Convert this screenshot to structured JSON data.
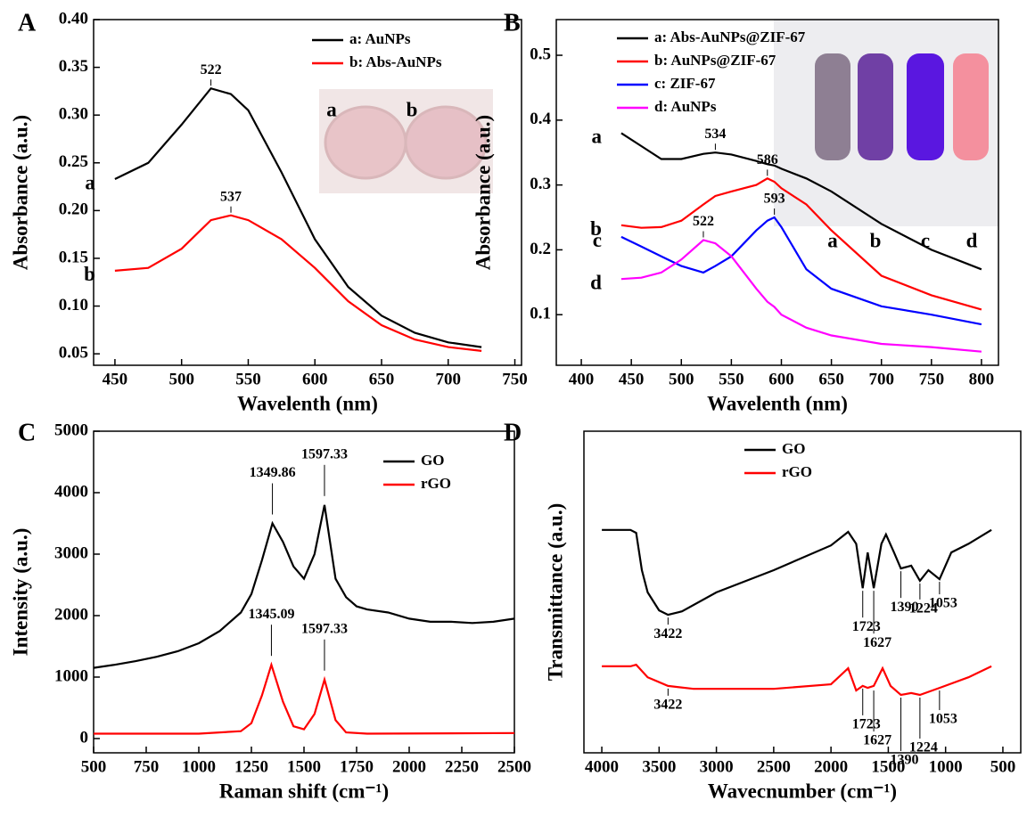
{
  "chart_data": [
    {
      "type": "line",
      "panel_label": "A",
      "x_label": "Wavelenth (nm)",
      "y_label": "Absorbance (a.u.)",
      "xlim": [
        434,
        755
      ],
      "xticks": [
        450,
        500,
        550,
        600,
        650,
        700,
        750
      ],
      "ylim": [
        0.038,
        0.4
      ],
      "yticks": [
        0.05,
        {
          "value": 0.1,
          "label": "0.10"
        },
        0.15,
        {
          "value": 0.2,
          "label": "0.20"
        },
        0.25,
        {
          "value": 0.3,
          "label": "0.30"
        },
        0.35,
        {
          "value": 0.4,
          "label": "0.40"
        }
      ],
      "legend": "upper right",
      "series": [
        {
          "name": "a: AuNPs",
          "label": "a",
          "color": "#000000",
          "x": [
            450,
            475,
            500,
            522,
            537,
            550,
            575,
            600,
            625,
            650,
            675,
            700,
            725
          ],
          "values": [
            0.233,
            0.25,
            0.29,
            0.328,
            0.322,
            0.305,
            0.24,
            0.17,
            0.12,
            0.09,
            0.072,
            0.062,
            0.057
          ]
        },
        {
          "name": "b: Abs-AuNPs",
          "label": "b",
          "color": "#ff0000",
          "x": [
            450,
            475,
            500,
            522,
            537,
            550,
            575,
            600,
            625,
            650,
            675,
            700,
            725
          ],
          "values": [
            0.137,
            0.14,
            0.16,
            0.19,
            0.195,
            0.19,
            0.17,
            0.14,
            0.105,
            0.08,
            0.065,
            0.057,
            0.053
          ]
        }
      ],
      "annotations": [
        {
          "text": "522",
          "x": 522,
          "y": 0.328
        },
        {
          "text": "537",
          "x": 537,
          "y": 0.195
        }
      ],
      "inset_labels": [
        "a",
        "b"
      ]
    },
    {
      "type": "line",
      "panel_label": "B",
      "x_label": "Wavelenth (nm)",
      "y_label": "Absorbance (a.u.)",
      "xlim": [
        375,
        817
      ],
      "xticks": [
        400,
        450,
        500,
        550,
        600,
        650,
        700,
        750,
        800
      ],
      "ylim": [
        0.022,
        0.555
      ],
      "yticks": [
        0.1,
        0.2,
        0.3,
        0.4,
        0.5
      ],
      "legend": "upper left",
      "series": [
        {
          "name": "a: Abs-AuNPs@ZIF-67",
          "label": "a",
          "color": "#000000",
          "x": [
            440,
            460,
            480,
            500,
            522,
            534,
            550,
            575,
            586,
            593,
            600,
            625,
            650,
            700,
            750,
            800
          ],
          "values": [
            0.38,
            0.36,
            0.34,
            0.34,
            0.348,
            0.35,
            0.347,
            0.337,
            0.332,
            0.33,
            0.325,
            0.31,
            0.29,
            0.24,
            0.2,
            0.17
          ]
        },
        {
          "name": "b: AuNPs@ZIF-67",
          "label": "b",
          "color": "#ff0000",
          "x": [
            440,
            460,
            480,
            500,
            522,
            534,
            550,
            575,
            586,
            593,
            600,
            625,
            650,
            700,
            750,
            800
          ],
          "values": [
            0.238,
            0.234,
            0.235,
            0.245,
            0.27,
            0.283,
            0.29,
            0.3,
            0.31,
            0.305,
            0.295,
            0.27,
            0.23,
            0.16,
            0.13,
            0.108
          ]
        },
        {
          "name": "c: ZIF-67",
          "label": "c",
          "color": "#0000ff",
          "x": [
            440,
            460,
            480,
            500,
            522,
            534,
            550,
            575,
            586,
            593,
            600,
            625,
            650,
            700,
            750,
            800
          ],
          "values": [
            0.22,
            0.205,
            0.19,
            0.175,
            0.165,
            0.175,
            0.19,
            0.23,
            0.245,
            0.25,
            0.235,
            0.17,
            0.14,
            0.113,
            0.1,
            0.085
          ]
        },
        {
          "name": "d: AuNPs",
          "label": "d",
          "color": "#ff00ff",
          "x": [
            440,
            460,
            480,
            500,
            522,
            534,
            550,
            575,
            586,
            593,
            600,
            625,
            650,
            700,
            750,
            800
          ],
          "values": [
            0.155,
            0.157,
            0.165,
            0.185,
            0.215,
            0.21,
            0.19,
            0.14,
            0.12,
            0.112,
            0.1,
            0.08,
            0.068,
            0.055,
            0.05,
            0.043
          ]
        }
      ],
      "annotations": [
        {
          "text": "534",
          "x": 534,
          "y": 0.35
        },
        {
          "text": "586",
          "x": 586,
          "y": 0.31
        },
        {
          "text": "593",
          "x": 593,
          "y": 0.25
        },
        {
          "text": "522",
          "x": 522,
          "y": 0.215
        }
      ],
      "inset_labels": [
        "a",
        "b",
        "c",
        "d"
      ]
    },
    {
      "type": "line",
      "panel_label": "C",
      "x_label": "Raman shift (cm⁻¹)",
      "y_label": "Intensity (a.u.)",
      "xlim": [
        500,
        2500
      ],
      "xticks": [
        500,
        750,
        1000,
        1250,
        1500,
        1750,
        2000,
        2250,
        2500
      ],
      "ylim": [
        -232,
        5000
      ],
      "yticks": [
        0,
        1000,
        2000,
        3000,
        4000,
        5000
      ],
      "legend": "upper right",
      "series": [
        {
          "name": "GO",
          "color": "#000000",
          "x": [
            500,
            600,
            700,
            800,
            900,
            1000,
            1100,
            1200,
            1250,
            1300,
            1349.86,
            1400,
            1450,
            1500,
            1550,
            1597.33,
            1650,
            1700,
            1750,
            1800,
            1900,
            2000,
            2100,
            2200,
            2300,
            2400,
            2500
          ],
          "values": [
            1150,
            1200,
            1260,
            1330,
            1420,
            1550,
            1750,
            2050,
            2350,
            2900,
            3500,
            3200,
            2800,
            2600,
            3000,
            3800,
            2600,
            2300,
            2150,
            2100,
            2050,
            1950,
            1900,
            1900,
            1880,
            1900,
            1950
          ]
        },
        {
          "name": "rGO",
          "color": "#ff0000",
          "x": [
            500,
            1000,
            1200,
            1250,
            1300,
            1345.09,
            1400,
            1450,
            1500,
            1550,
            1597.33,
            1650,
            1700,
            1800,
            2500
          ],
          "values": [
            80,
            80,
            120,
            250,
            700,
            1200,
            600,
            200,
            150,
            400,
            960,
            300,
            100,
            80,
            90
          ]
        }
      ],
      "annotations": [
        {
          "text": "1349.86",
          "x": 1349.86,
          "y": 3500
        },
        {
          "text": "1597.33",
          "x": 1597.33,
          "y": 3800
        },
        {
          "text": "1345.09",
          "x": 1345.09,
          "y": 1200
        },
        {
          "text": "1597.33",
          "x": 1597.33,
          "y": 960
        }
      ]
    },
    {
      "type": "line",
      "panel_label": "D",
      "x_label": "Wavecnumber (cm⁻¹)",
      "y_label": "Transmittance (a.u.)",
      "xlim": [
        4156,
        344
      ],
      "xticks": [
        4000,
        3500,
        3000,
        2500,
        2000,
        1500,
        1000,
        500
      ],
      "ylim": [
        0,
        100
      ],
      "legend": "upper right",
      "series": [
        {
          "name": "GO",
          "color": "#000000",
          "x": [
            4000,
            3750,
            3700,
            3650,
            3600,
            3500,
            3422,
            3300,
            3000,
            2500,
            2000,
            1850,
            1780,
            1723,
            1680,
            1627,
            1560,
            1520,
            1450,
            1390,
            1300,
            1224,
            1150,
            1053,
            950,
            800,
            600
          ],
          "values": [
            69.3,
            69.3,
            68.4,
            56.8,
            49.9,
            44.3,
            42.9,
            44,
            49.9,
            56.8,
            64.5,
            68.7,
            65,
            51.2,
            62.3,
            51.2,
            65,
            67.9,
            62.3,
            57.3,
            58.2,
            53.5,
            56.8,
            54,
            62.3,
            65,
            69.3
          ]
        },
        {
          "name": "rGO",
          "color": "#ff0000",
          "x": [
            4000,
            3750,
            3700,
            3600,
            3422,
            3200,
            3000,
            2500,
            2000,
            1850,
            1780,
            1723,
            1680,
            1627,
            1550,
            1480,
            1390,
            1300,
            1224,
            1053,
            800,
            600
          ],
          "values": [
            26.9,
            26.9,
            27.4,
            23.5,
            20.8,
            19.9,
            19.9,
            19.9,
            21.3,
            26.3,
            19.4,
            20.8,
            20.2,
            20.8,
            26.3,
            20.8,
            18,
            18.6,
            18,
            20.2,
            23.5,
            26.9
          ]
        }
      ],
      "annotations": [
        {
          "text": "3422",
          "x": 3422,
          "y": 42.9
        },
        {
          "text": "1723",
          "x": 1723,
          "y": 51.2
        },
        {
          "text": "1627",
          "x": 1627,
          "y": 51.2
        },
        {
          "text": "1390",
          "x": 1390,
          "y": 57.3
        },
        {
          "text": "1224",
          "x": 1224,
          "y": 53.5
        },
        {
          "text": "1053",
          "x": 1053,
          "y": 54
        },
        {
          "text": "3422",
          "x": 3422,
          "y": 20.8
        },
        {
          "text": "1723",
          "x": 1723,
          "y": 20.8
        },
        {
          "text": "1627",
          "x": 1627,
          "y": 20.2
        },
        {
          "text": "1390",
          "x": 1390,
          "y": 18
        },
        {
          "text": "1224",
          "x": 1224,
          "y": 18
        },
        {
          "text": "1053",
          "x": 1053,
          "y": 20.2
        }
      ]
    }
  ]
}
